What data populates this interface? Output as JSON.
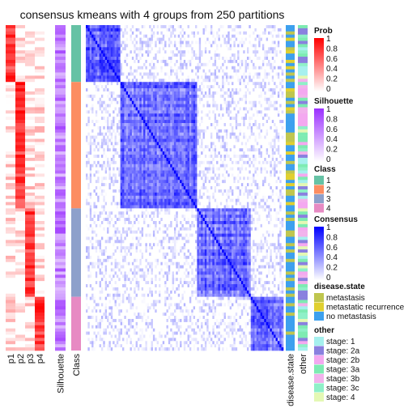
{
  "chart_data": {
    "type": "heatmap",
    "title": "consensus kmeans with 4 groups from 250 partitions",
    "groups": [
      {
        "class": "1",
        "size": 18,
        "color": "#66C2A5"
      },
      {
        "class": "2",
        "size": 40,
        "color": "#FC8D62"
      },
      {
        "class": "3",
        "size": 28,
        "color": "#8DA0CB"
      },
      {
        "class": "4",
        "size": 17,
        "color": "#E78AC3"
      }
    ],
    "prob_columns": [
      "p1",
      "p2",
      "p3",
      "p4"
    ],
    "left_columns": [
      "p1",
      "p2",
      "p3",
      "p4",
      "Silhouette",
      "Class"
    ],
    "right_columns": [
      "disease.state",
      "other"
    ],
    "legends": [
      {
        "title": "Prob",
        "type": "gradient",
        "ticks": [
          "1",
          "0.8",
          "0.6",
          "0.4",
          "0.2",
          "0"
        ],
        "low": "#FFFFFF",
        "high": "#FF0000"
      },
      {
        "title": "Silhouette",
        "type": "gradient",
        "ticks": [
          "1",
          "0.8",
          "0.6",
          "0.4",
          "0.2",
          "0"
        ],
        "low": "#FFFFFF",
        "high": "#9B30FF"
      },
      {
        "title": "Class",
        "type": "discrete",
        "items": [
          {
            "label": "1",
            "color": "#66C2A5"
          },
          {
            "label": "2",
            "color": "#FC8D62"
          },
          {
            "label": "3",
            "color": "#8DA0CB"
          },
          {
            "label": "4",
            "color": "#E78AC3"
          }
        ]
      },
      {
        "title": "Consensus",
        "type": "gradient",
        "ticks": [
          "1",
          "0.8",
          "0.6",
          "0.4",
          "0.2",
          "0"
        ],
        "low": "#FFFFFF",
        "high": "#0000FF"
      },
      {
        "title": "disease.state",
        "type": "discrete",
        "items": [
          {
            "label": "metastasis",
            "color": "#BFC64F"
          },
          {
            "label": "metastatic recurrence",
            "color": "#E0D030"
          },
          {
            "label": "no metastasis",
            "color": "#3DA0EE"
          }
        ]
      },
      {
        "title": "other",
        "type": "discrete",
        "items": [
          {
            "label": "stage: 1",
            "color": "#A6F0EE"
          },
          {
            "label": "stage: 2a",
            "color": "#8A80DF"
          },
          {
            "label": "stage: 2b",
            "color": "#F4A8F0"
          },
          {
            "label": "stage: 3a",
            "color": "#7EEBB2"
          },
          {
            "label": "stage: 3b",
            "color": "#F2B2EC"
          },
          {
            "label": "stage: 3c",
            "color": "#8FF0C8"
          },
          {
            "label": "stage: 4",
            "color": "#E4F8B4"
          }
        ]
      }
    ],
    "grid": false
  }
}
